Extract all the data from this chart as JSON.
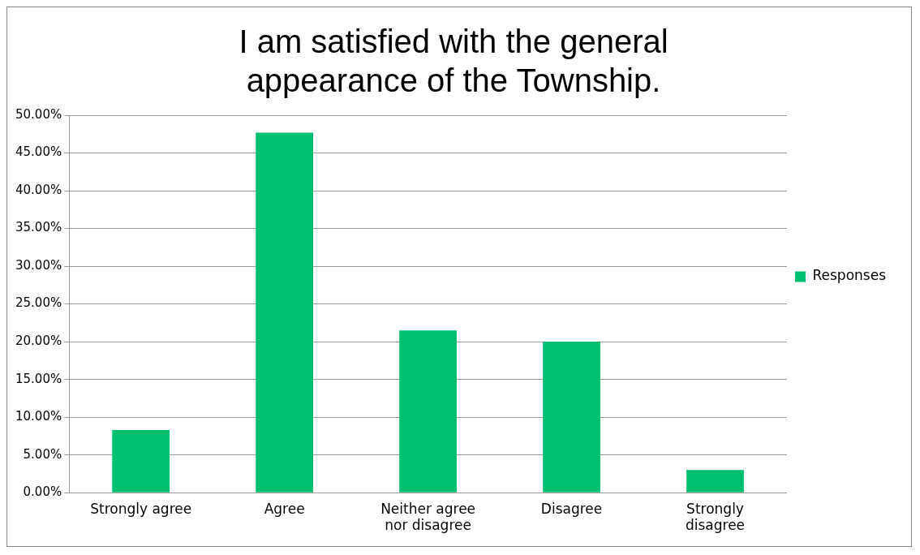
{
  "chart_data": {
    "type": "bar",
    "title": "I am satisfied with the general appearance of the Township.",
    "categories": [
      "Strongly agree",
      "Agree",
      "Neither agree nor disagree",
      "Disagree",
      "Strongly disagree"
    ],
    "series": [
      {
        "name": "Responses",
        "color": "#00c070",
        "values": [
          8.3,
          47.7,
          21.5,
          20.0,
          3.0
        ]
      }
    ],
    "ylim": [
      0,
      50
    ],
    "yticks": [
      {
        "value": 0,
        "label": "0.00%"
      },
      {
        "value": 5,
        "label": "5.00%"
      },
      {
        "value": 10,
        "label": "10.00%"
      },
      {
        "value": 15,
        "label": "15.00%"
      },
      {
        "value": 20,
        "label": "20.00%"
      },
      {
        "value": 25,
        "label": "25.00%"
      },
      {
        "value": 30,
        "label": "30.00%"
      },
      {
        "value": 35,
        "label": "35.00%"
      },
      {
        "value": 40,
        "label": "40.00%"
      },
      {
        "value": 45,
        "label": "45.00%"
      },
      {
        "value": 50,
        "label": "50.00%"
      }
    ],
    "grid": "y",
    "legend": "right"
  }
}
